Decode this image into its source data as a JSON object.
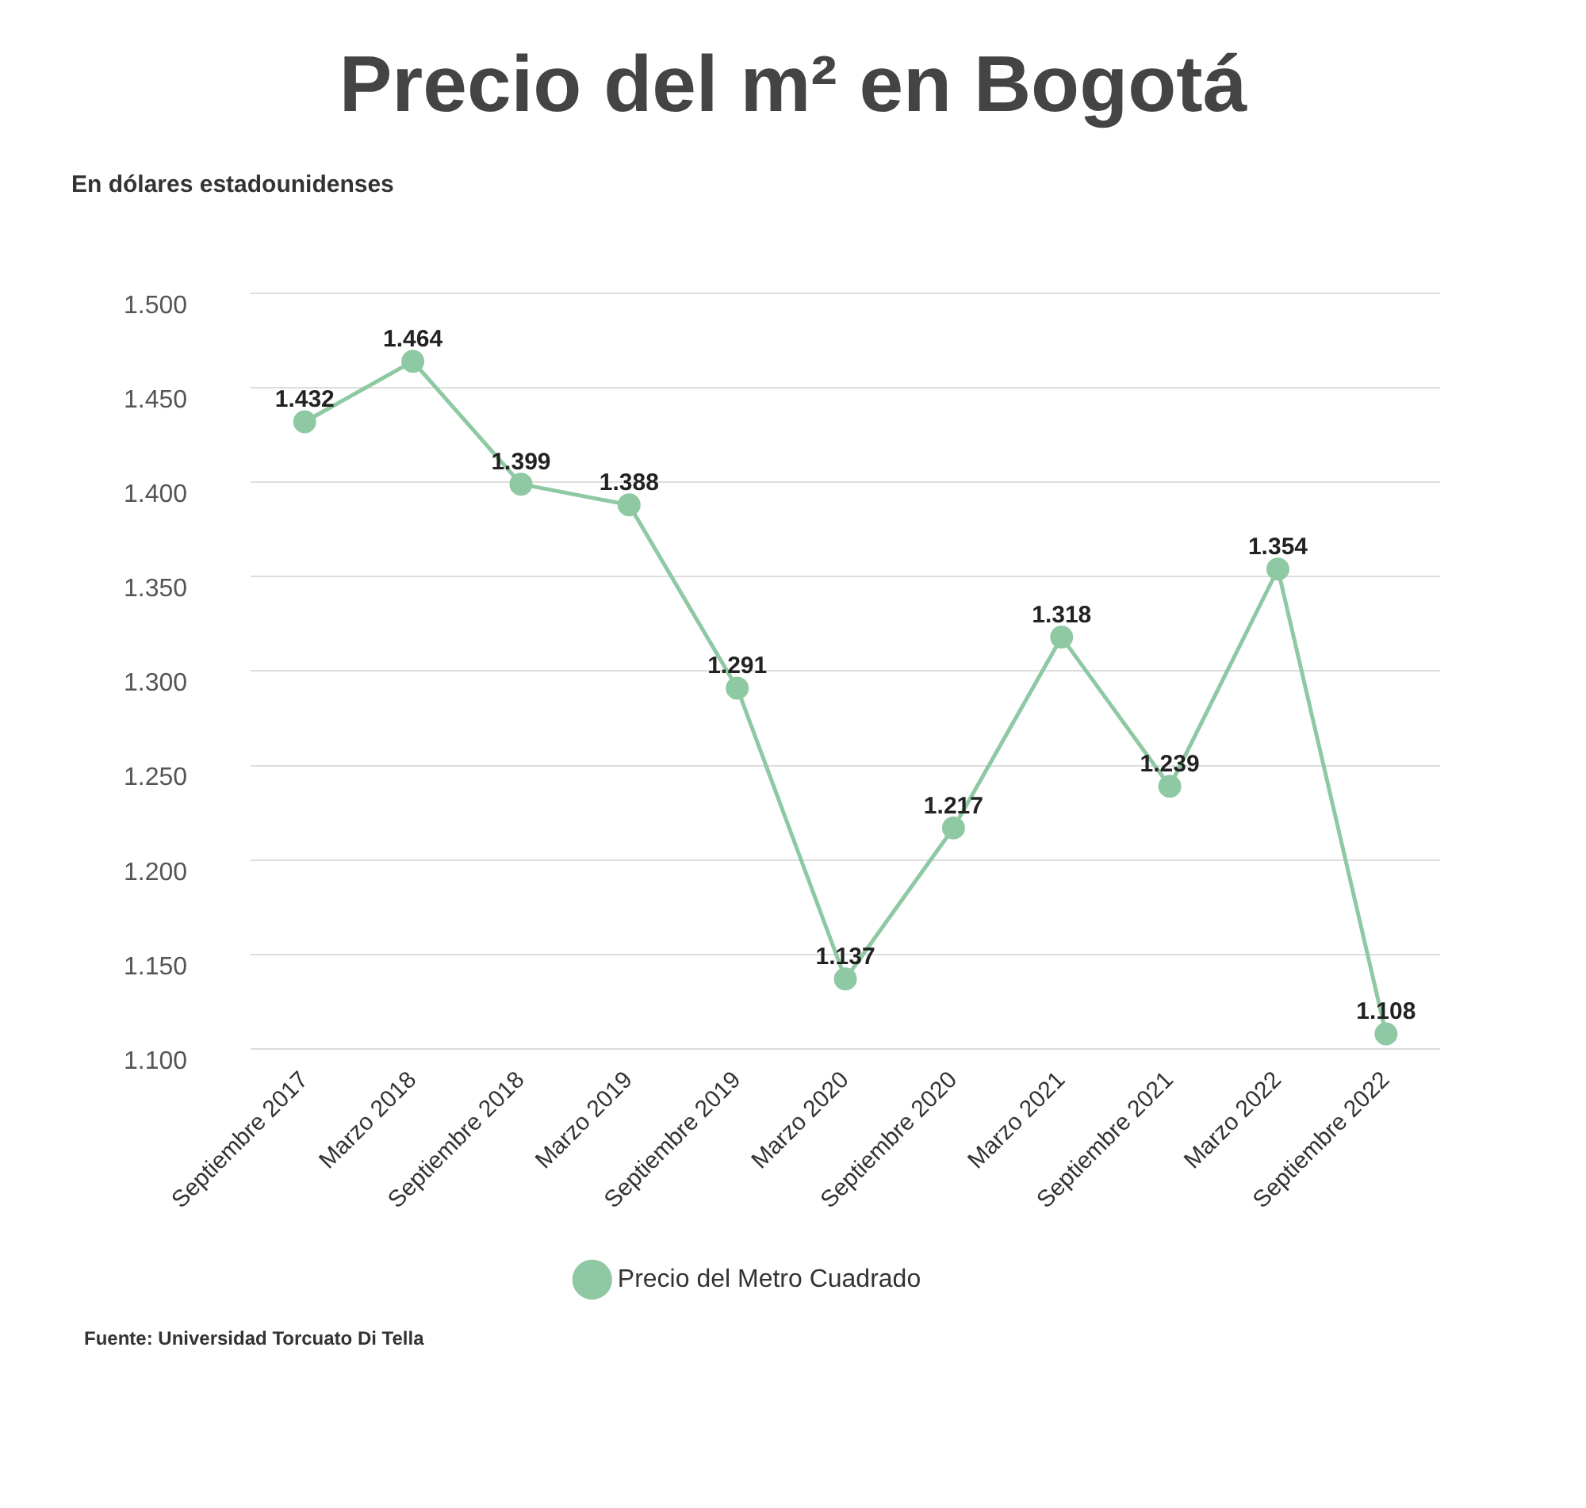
{
  "chart_data": {
    "type": "line",
    "title": "Precio del m² en Bogotá",
    "subtitle": "En dólares estadounidenses",
    "categories": [
      "Septiembre 2017",
      "Marzo 2018",
      "Septiembre 2018",
      "Marzo 2019",
      "Septiembre 2019",
      "Marzo 2020",
      "Septiembre 2020",
      "Marzo 2021",
      "Septiembre 2021",
      "Marzo 2022",
      "Septiembre 2022"
    ],
    "series": [
      {
        "name": "Precio del Metro Cuadrado",
        "color": "#8fc9a3",
        "values": [
          1432,
          1464,
          1399,
          1388,
          1291,
          1137,
          1217,
          1318,
          1239,
          1354,
          1108
        ],
        "value_labels": [
          "1.432",
          "1.464",
          "1.399",
          "1.388",
          "1.291",
          "1.137",
          "1.217",
          "1.318",
          "1.239",
          "1.354",
          "1.108"
        ]
      }
    ],
    "ylim": [
      1100,
      1500
    ],
    "yticks": [
      {
        "value": 1100,
        "label": "1.100"
      },
      {
        "value": 1150,
        "label": "1.150"
      },
      {
        "value": 1200,
        "label": "1.200"
      },
      {
        "value": 1250,
        "label": "1.250"
      },
      {
        "value": 1300,
        "label": "1.300"
      },
      {
        "value": 1350,
        "label": "1.350"
      },
      {
        "value": 1400,
        "label": "1.400"
      },
      {
        "value": 1450,
        "label": "1.450"
      },
      {
        "value": 1500,
        "label": "1.500"
      }
    ],
    "grid": "y",
    "legend": "bottom",
    "marker": "circle",
    "line_style": "solid",
    "annotations": [
      "Fuente: Universidad Torcuato Di Tella"
    ]
  }
}
